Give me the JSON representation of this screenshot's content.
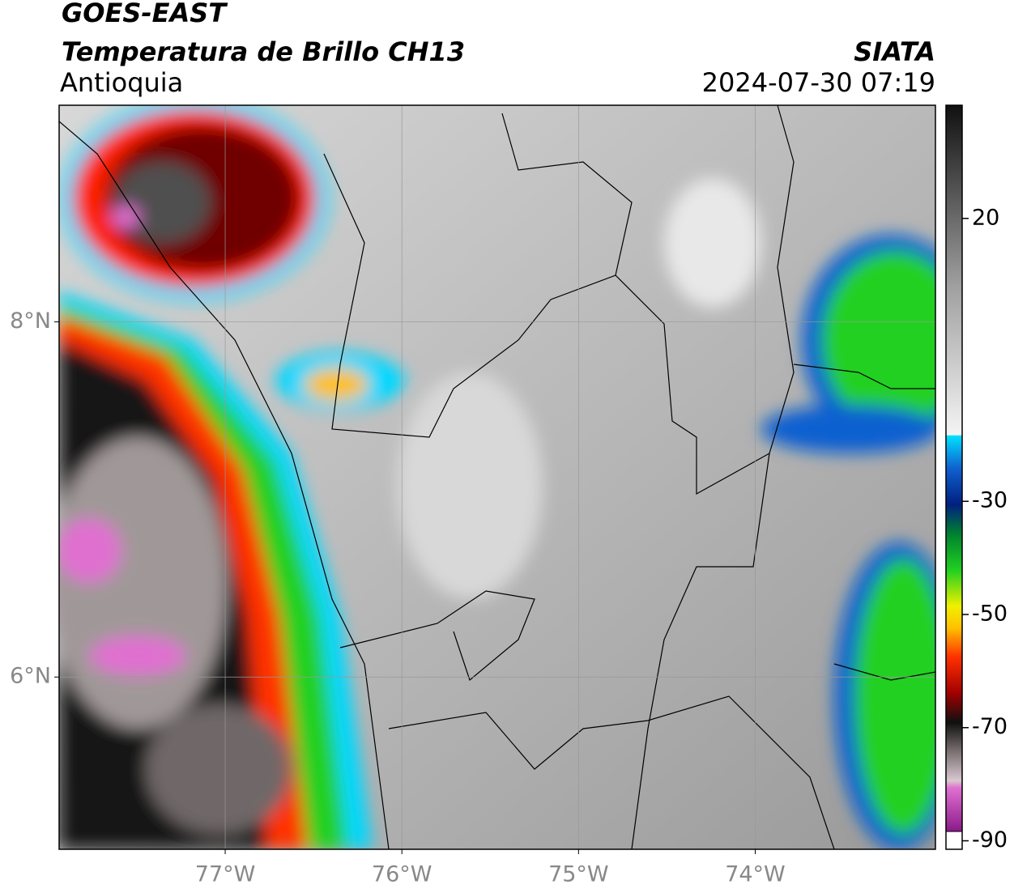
{
  "header": {
    "title": "GOES-EAST",
    "subtitle": "Temperatura de Brillo CH13",
    "region": "Antioquia",
    "source": "SIATA",
    "datetime": "2024-07-30 07:19"
  },
  "map": {
    "xlim": [
      -77.94,
      -72.98
    ],
    "ylim": [
      5.03,
      9.22
    ],
    "xticks": [
      {
        "value": -77,
        "label": "77°W"
      },
      {
        "value": -76,
        "label": "76°W"
      },
      {
        "value": -75,
        "label": "75°W"
      },
      {
        "value": -74,
        "label": "74°W"
      }
    ],
    "yticks": [
      {
        "value": 8,
        "label": "8°N"
      },
      {
        "value": 6,
        "label": "6°N"
      }
    ],
    "grid": true
  },
  "colorbar": {
    "lim": [
      -91.5,
      40
    ],
    "ticks": [
      20,
      -30,
      -50,
      -70,
      -90
    ]
  }
}
